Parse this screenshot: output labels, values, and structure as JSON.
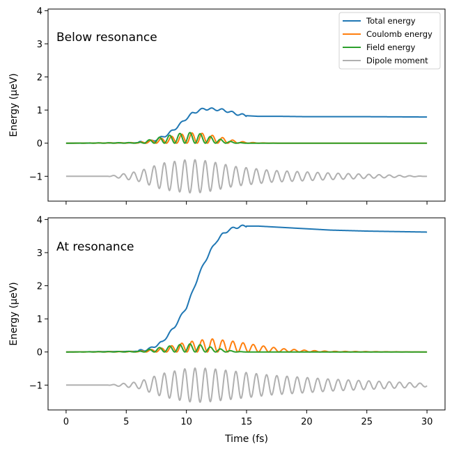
{
  "figure": {
    "xlabel": "Time (fs)",
    "ylabel": "Energy (μeV)"
  },
  "legend": {
    "placement": "top-right",
    "entries": [
      {
        "label": "Total energy",
        "color": "#1f77b4"
      },
      {
        "label": "Coulomb energy",
        "color": "#ff7f0e"
      },
      {
        "label": "Field energy",
        "color": "#2ca02c"
      },
      {
        "label": "Dipole moment",
        "color": "#b0b0b0"
      }
    ]
  },
  "chart_data": [
    {
      "type": "line",
      "title": "Below resonance",
      "xlabel": "",
      "ylabel": "Energy (μeV)",
      "xlim": [
        -1.5,
        31.5
      ],
      "ylim": [
        -1.75,
        4.05
      ],
      "x_ticks": [
        0,
        5,
        10,
        15,
        20,
        25,
        30
      ],
      "y_ticks": [
        -1,
        0,
        1,
        2,
        3,
        4
      ],
      "y_tick_labels": [
        "−1",
        "0",
        "1",
        "2",
        "3",
        "4"
      ],
      "series": [
        {
          "name": "Total energy",
          "color": "#1f77b4",
          "x": [
            0,
            6,
            7,
            8,
            8.5,
            9,
            9.5,
            10,
            10.5,
            11,
            11.5,
            12,
            12.5,
            13,
            13.5,
            14,
            14.5,
            15,
            15.5,
            16,
            18,
            20,
            25,
            30
          ],
          "y": [
            0,
            0.01,
            0.05,
            0.18,
            0.28,
            0.42,
            0.58,
            0.75,
            0.9,
            0.98,
            1.04,
            1.03,
            1.02,
            1.0,
            0.96,
            0.9,
            0.86,
            0.83,
            0.82,
            0.81,
            0.81,
            0.8,
            0.8,
            0.79
          ]
        },
        {
          "name": "Coulomb energy",
          "color": "#ff7f0e",
          "x": [
            0,
            6,
            8,
            10,
            11,
            12,
            13,
            14,
            15,
            16,
            18,
            30
          ],
          "y": [
            0,
            0.02,
            0.15,
            0.3,
            0.32,
            0.25,
            0.17,
            0.08,
            0.03,
            0.01,
            0,
            0
          ]
        },
        {
          "name": "Field energy",
          "color": "#2ca02c",
          "x": [
            0,
            6,
            8,
            10,
            11,
            12,
            13,
            14,
            15,
            30
          ],
          "y": [
            0,
            0.02,
            0.2,
            0.33,
            0.3,
            0.2,
            0.1,
            0.03,
            0,
            0
          ]
        },
        {
          "name": "Dipole moment",
          "color": "#b0b0b0",
          "x": [
            0,
            3.5,
            6,
            8,
            10,
            11,
            12,
            14,
            17,
            22,
            30
          ],
          "y": [
            -1,
            -1,
            -0.85,
            -0.6,
            -0.5,
            -0.5,
            -0.55,
            -0.7,
            -0.82,
            -0.9,
            -1.0
          ]
        }
      ]
    },
    {
      "type": "line",
      "title": "At resonance",
      "xlabel": "Time (fs)",
      "ylabel": "Energy (μeV)",
      "xlim": [
        -1.5,
        31.5
      ],
      "ylim": [
        -1.75,
        4.05
      ],
      "x_ticks": [
        0,
        5,
        10,
        15,
        20,
        25,
        30
      ],
      "y_ticks": [
        -1,
        0,
        1,
        2,
        3,
        4
      ],
      "y_tick_labels": [
        "−1",
        "0",
        "1",
        "2",
        "3",
        "4"
      ],
      "series": [
        {
          "name": "Total energy",
          "color": "#1f77b4",
          "x": [
            0,
            6,
            7,
            8,
            9,
            10,
            10.5,
            11,
            11.5,
            12,
            12.5,
            13,
            13.5,
            14,
            14.5,
            15,
            15.5,
            16,
            18,
            20,
            22,
            25,
            30
          ],
          "y": [
            0,
            0.02,
            0.1,
            0.3,
            0.75,
            1.35,
            1.8,
            2.3,
            2.7,
            3.05,
            3.35,
            3.55,
            3.68,
            3.75,
            3.79,
            3.8,
            3.8,
            3.8,
            3.76,
            3.72,
            3.68,
            3.65,
            3.62
          ]
        },
        {
          "name": "Coulomb energy",
          "color": "#ff7f0e",
          "x": [
            0,
            6,
            8,
            10,
            12,
            14,
            16,
            18,
            20,
            22,
            30
          ],
          "y": [
            0,
            0.02,
            0.12,
            0.3,
            0.4,
            0.32,
            0.2,
            0.1,
            0.05,
            0.02,
            0
          ]
        },
        {
          "name": "Field energy",
          "color": "#2ca02c",
          "x": [
            0,
            6,
            8,
            10,
            11,
            12,
            13,
            14,
            15,
            30
          ],
          "y": [
            0,
            0.02,
            0.15,
            0.25,
            0.23,
            0.15,
            0.08,
            0.02,
            0,
            0
          ]
        },
        {
          "name": "Dipole moment",
          "color": "#b0b0b0",
          "x": [
            0,
            3.5,
            6,
            8,
            10,
            11,
            12,
            14,
            17,
            22,
            30
          ],
          "y": [
            -1,
            -1,
            -0.9,
            -0.65,
            -0.5,
            -0.48,
            -0.5,
            -0.58,
            -0.7,
            -0.82,
            -0.95
          ]
        }
      ]
    }
  ]
}
